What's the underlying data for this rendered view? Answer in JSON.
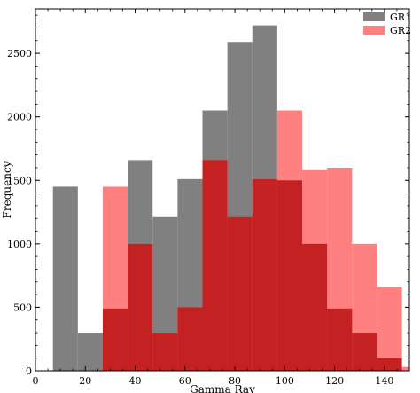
{
  "chart_data": {
    "type": "bar",
    "xlabel": "Gamma Ray",
    "ylabel": "Frequency",
    "xlim": [
      0,
      150
    ],
    "ylim": [
      0,
      2850
    ],
    "xticks": [
      "0",
      "20",
      "40",
      "60",
      "80",
      "100",
      "120",
      "140"
    ],
    "yticks": [
      "0",
      "500",
      "1000",
      "1500",
      "2000",
      "2500"
    ],
    "grid": false,
    "legend": "top-right",
    "series": [
      {
        "name": "GR1",
        "color": "#808080",
        "bins": [
          [
            7,
            17,
            1450
          ],
          [
            17,
            27,
            300
          ],
          [
            27,
            37,
            490
          ],
          [
            37,
            47,
            1660
          ],
          [
            47,
            57,
            1210
          ],
          [
            57,
            67,
            1510
          ],
          [
            67,
            77,
            2050
          ],
          [
            77,
            87,
            2590
          ],
          [
            87,
            97,
            2720
          ],
          [
            97,
            107,
            1500
          ],
          [
            107,
            117,
            1000
          ],
          [
            117,
            127,
            490
          ],
          [
            127,
            137,
            300
          ],
          [
            137,
            147,
            100
          ]
        ]
      },
      {
        "name": "GR2",
        "color": "#ff8080",
        "bins": [
          [
            27,
            37,
            1450
          ],
          [
            37,
            47,
            1000
          ],
          [
            47,
            57,
            300
          ],
          [
            57,
            67,
            500
          ],
          [
            67,
            77,
            1660
          ],
          [
            77,
            87,
            1210
          ],
          [
            87,
            97,
            1510
          ],
          [
            97,
            107,
            2050
          ],
          [
            107,
            117,
            1580
          ],
          [
            117,
            127,
            1600
          ],
          [
            127,
            137,
            1000
          ],
          [
            137,
            147,
            660
          ],
          [
            147,
            157,
            30
          ]
        ]
      }
    ]
  },
  "colors": {
    "overlap": "#c42222"
  }
}
